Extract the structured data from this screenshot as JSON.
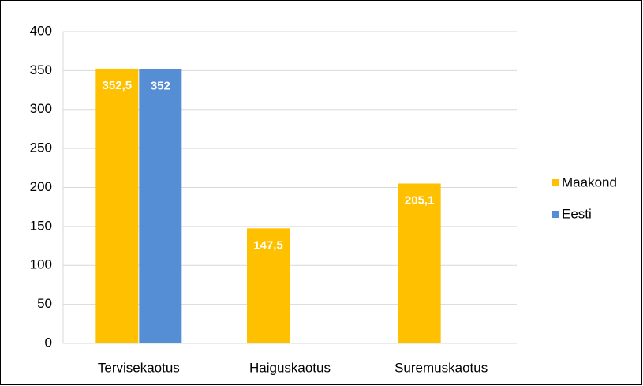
{
  "chart_data": {
    "type": "bar",
    "categories": [
      "Tervisekaotus",
      "Haiguskaotus",
      "Suremuskaotus"
    ],
    "series": [
      {
        "name": "Maakond",
        "color": "#ffc000",
        "values": [
          352.5,
          147.5,
          205.1
        ],
        "value_labels": [
          "352,5",
          "147,5",
          "205,1"
        ]
      },
      {
        "name": "Eesti",
        "color": "#558ed5",
        "values": [
          352,
          null,
          null
        ],
        "value_labels": [
          "352",
          null,
          null
        ]
      }
    ],
    "ylim": [
      0,
      400
    ],
    "yticks": [
      0,
      50,
      100,
      150,
      200,
      250,
      300,
      350,
      400
    ],
    "grid": true,
    "legend": "right"
  }
}
